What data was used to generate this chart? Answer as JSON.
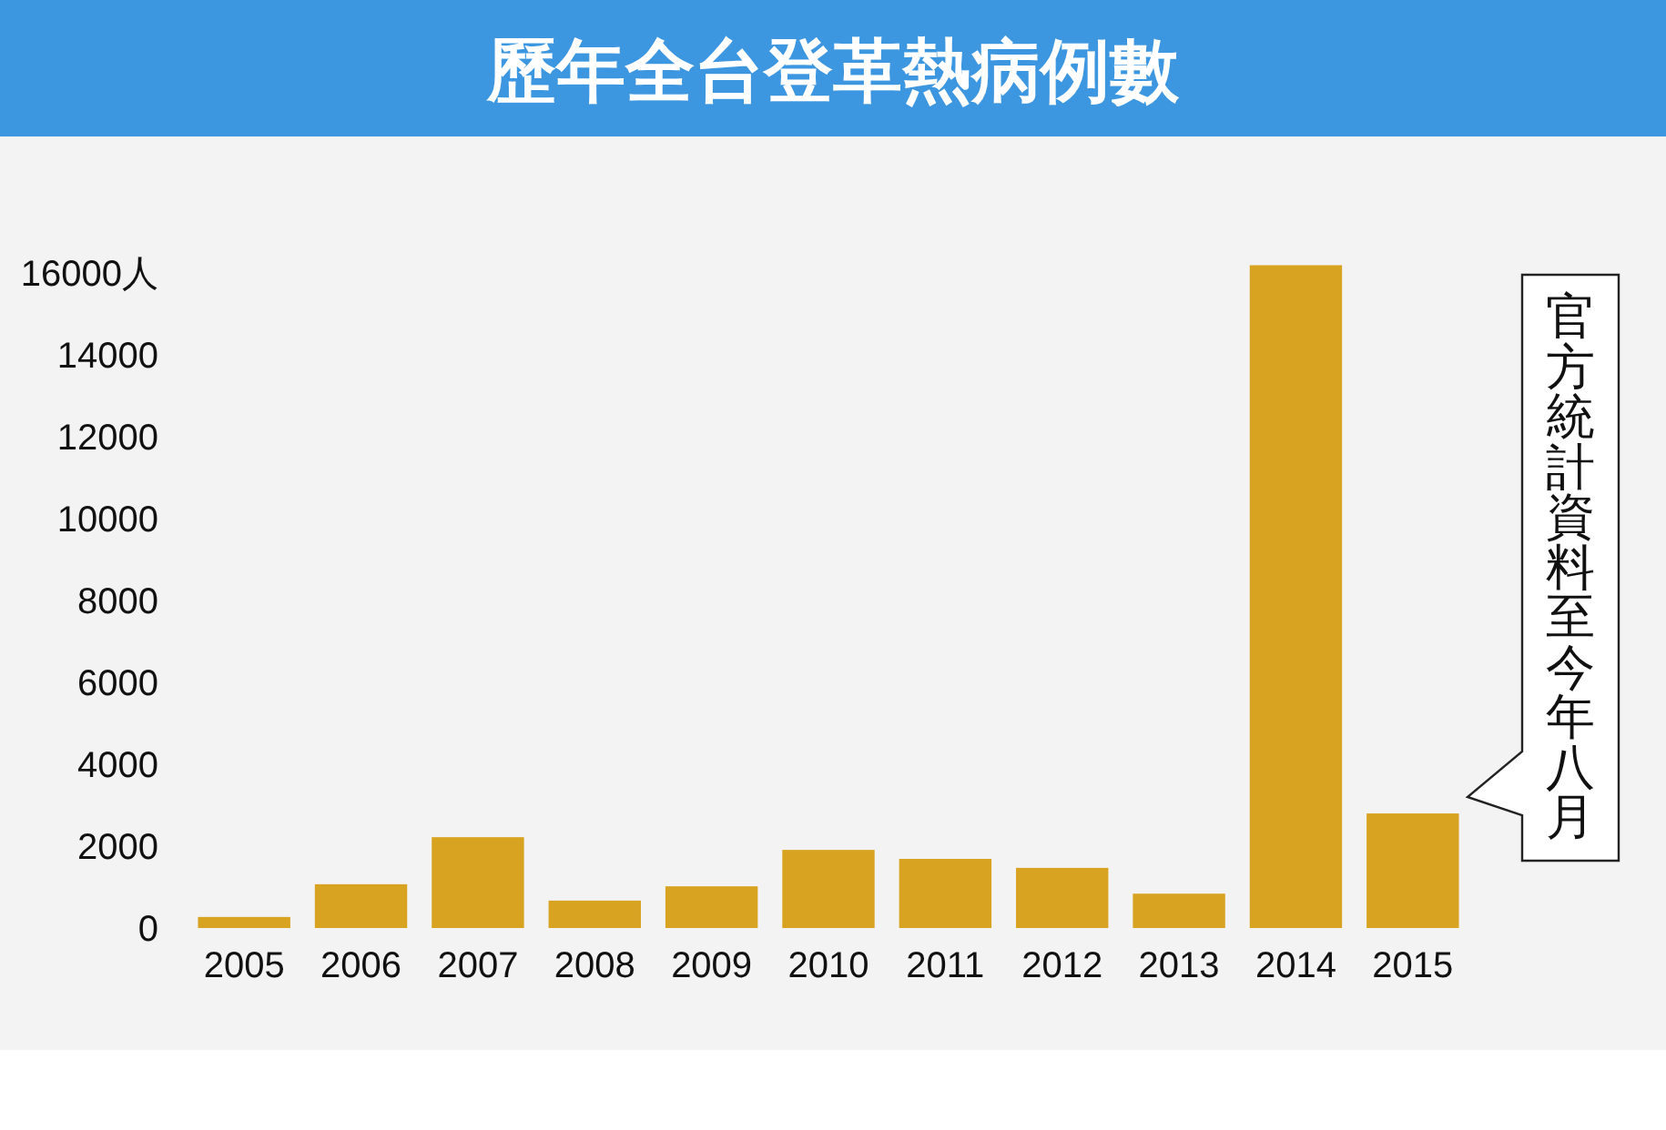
{
  "chart_data": {
    "type": "bar",
    "title": "歷年全台登革熱病例數",
    "categories": [
      "2005",
      "2006",
      "2007",
      "2008",
      "2009",
      "2010",
      "2011",
      "2012",
      "2013",
      "2014",
      "2015"
    ],
    "values": [
      270,
      1070,
      2220,
      670,
      1020,
      1910,
      1690,
      1470,
      840,
      16200,
      2800
    ],
    "color": "#d9a322",
    "ylim": [
      0,
      16500
    ],
    "yticks": [
      0,
      2000,
      4000,
      6000,
      8000,
      10000,
      12000,
      14000,
      {
        "value": 16000,
        "label": "16000人"
      }
    ],
    "grid": false,
    "annotations": [
      "官方統計資料至今年八月"
    ]
  }
}
